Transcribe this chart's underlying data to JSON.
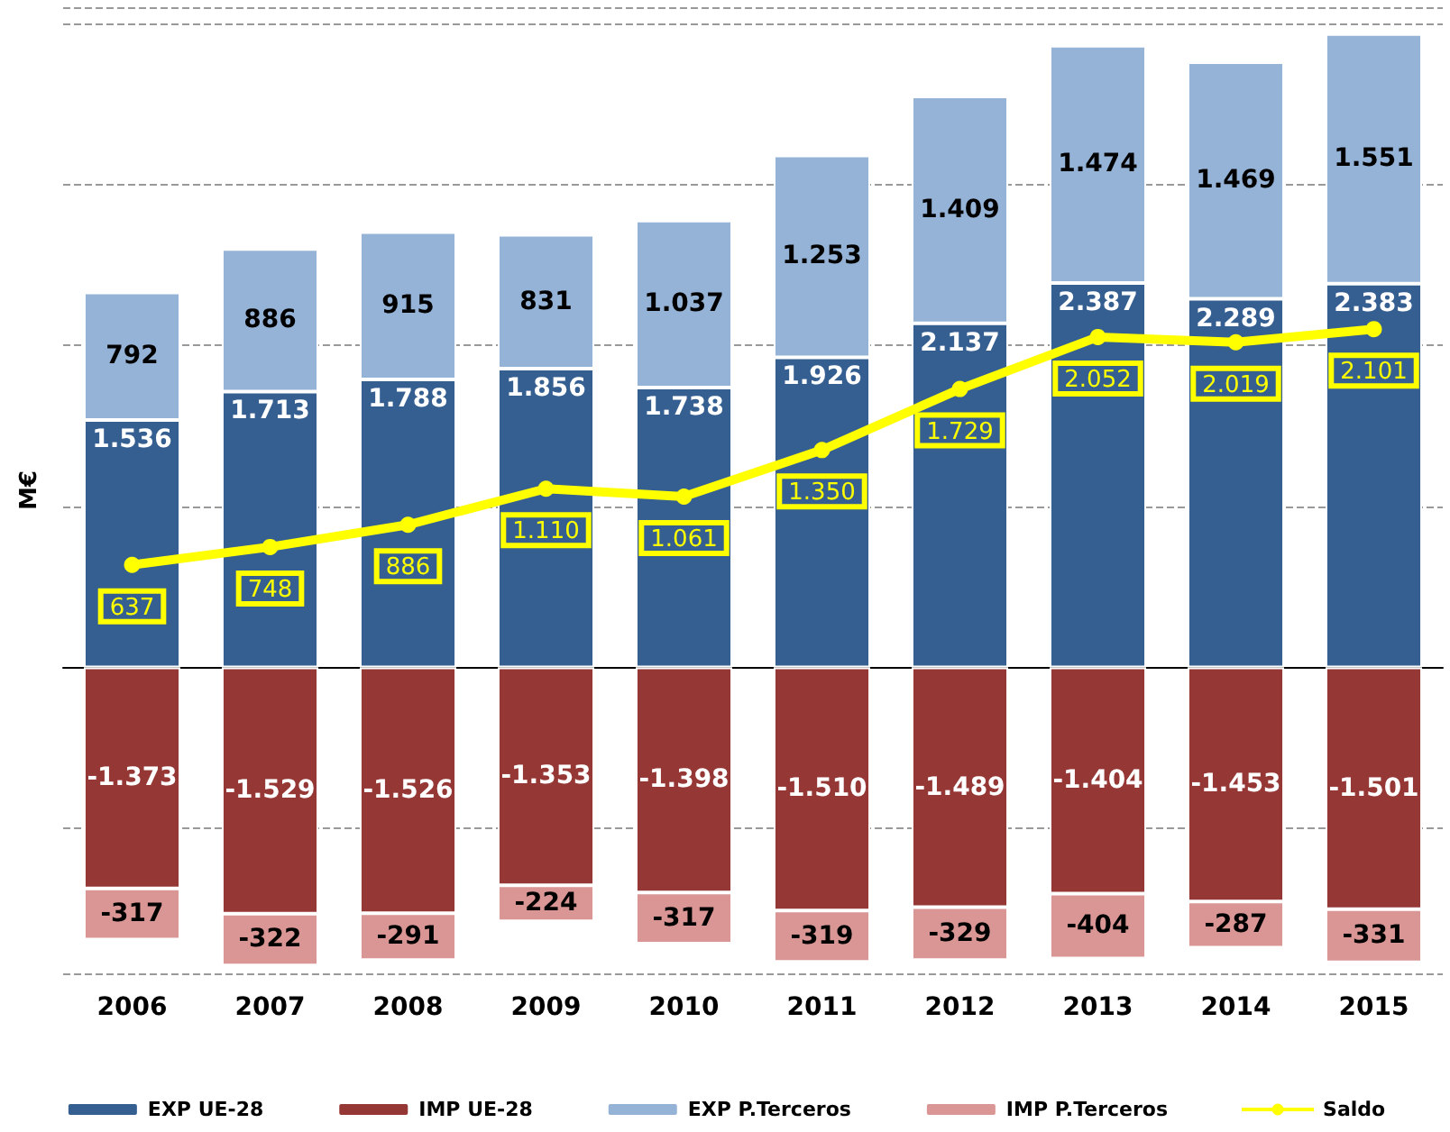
{
  "chart_data": {
    "type": "bar",
    "stacked": true,
    "ylabel": "M€",
    "categories": [
      "2006",
      "2007",
      "2008",
      "2009",
      "2010",
      "2011",
      "2012",
      "2013",
      "2014",
      "2015"
    ],
    "series": [
      {
        "name": "EXP UE-28",
        "color": "#355f91",
        "values": [
          1536,
          1713,
          1788,
          1856,
          1738,
          1926,
          2137,
          2387,
          2289,
          2383
        ],
        "value_labels": [
          "1.536",
          "1.713",
          "1.788",
          "1.856",
          "1.738",
          "1.926",
          "2.137",
          "2.387",
          "2.289",
          "2.383"
        ]
      },
      {
        "name": "IMP UE-28",
        "color": "#953735",
        "values": [
          -1373,
          -1529,
          -1526,
          -1353,
          -1398,
          -1510,
          -1489,
          -1404,
          -1453,
          -1501
        ],
        "value_labels": [
          "-1.373",
          "-1.529",
          "-1.526",
          "-1.353",
          "-1.398",
          "-1.510",
          "-1.489",
          "-1.404",
          "-1.453",
          "-1.501"
        ]
      },
      {
        "name": "EXP P.Terceros",
        "color": "#95b3d7",
        "values": [
          792,
          886,
          915,
          831,
          1037,
          1253,
          1409,
          1474,
          1469,
          1551
        ],
        "value_labels": [
          "792",
          "886",
          "915",
          "831",
          "1.037",
          "1.253",
          "1.409",
          "1.474",
          "1.469",
          "1.551"
        ]
      },
      {
        "name": "IMP P.Terceros",
        "color": "#d99694",
        "values": [
          -317,
          -322,
          -291,
          -224,
          -317,
          -319,
          -329,
          -404,
          -287,
          -331
        ],
        "value_labels": [
          "-317",
          "-322",
          "-291",
          "-224",
          "-317",
          "-319",
          "-329",
          "-404",
          "-287",
          "-331"
        ]
      },
      {
        "name": "Saldo",
        "type": "line",
        "color": "#ffff00",
        "marker": "circle",
        "values": [
          637,
          748,
          886,
          1110,
          1061,
          1350,
          1729,
          2052,
          2019,
          2101
        ],
        "value_labels": [
          "637",
          "748",
          "886",
          "1.110",
          "1.061",
          "1.350",
          "1.729",
          "2.052",
          "2.019",
          "2.101"
        ]
      }
    ],
    "ylim": [
      -1900,
      4100
    ],
    "tick_labels": "x",
    "grid": "y",
    "legend": "bottom"
  }
}
